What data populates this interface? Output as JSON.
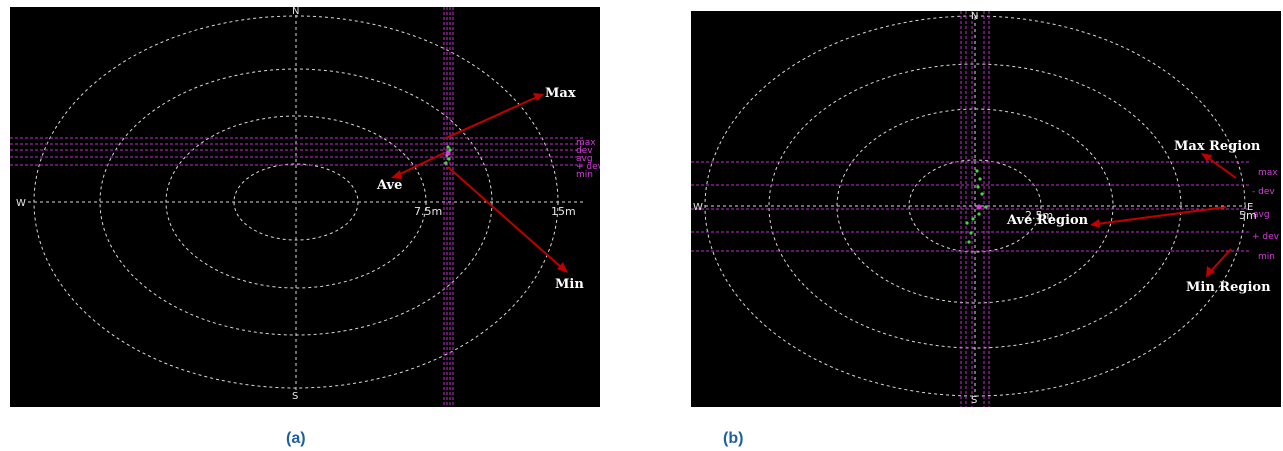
{
  "panel_a": {
    "compass": {
      "north": "N",
      "south": "S",
      "west": "W",
      "east": ""
    },
    "distances": {
      "inner": "7.5m",
      "outer": "15m"
    },
    "annotations": {
      "max": "Max",
      "ave": "Ave",
      "min": "Min"
    },
    "side_labels": [
      "max",
      "dev",
      "avg",
      "+ dev",
      "min"
    ],
    "caption": "(a)"
  },
  "panel_b": {
    "compass": {
      "north": "N",
      "south": "S",
      "west": "W",
      "east": "E"
    },
    "distances": {
      "inner": "2.5m",
      "outer": "5m"
    },
    "annotations": {
      "max": "Max Region",
      "ave": "Ave Region",
      "min": "Min Region"
    },
    "side_labels": [
      "max",
      "- dev",
      "avg",
      "+ dev",
      "min"
    ],
    "caption": "(b)"
  },
  "colors": {
    "background": "#000000",
    "rings": "#d9d9d9",
    "guide_lines": "#c12fc9",
    "arrows": "#c00000",
    "points": "#3ddc3d",
    "caption": "#1f5f9e"
  }
}
